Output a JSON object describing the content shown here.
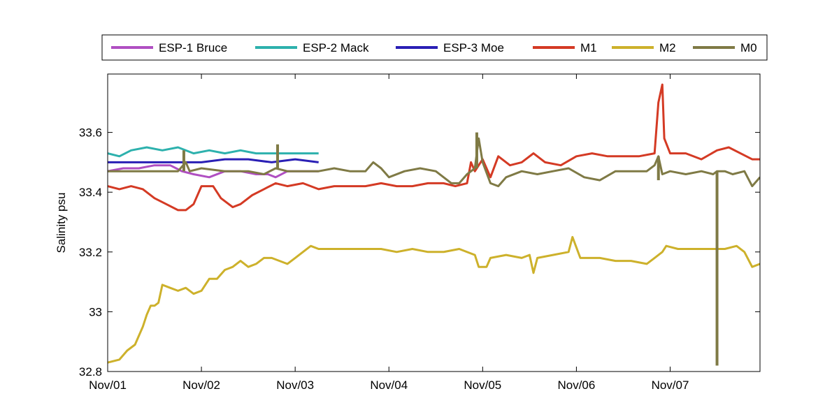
{
  "chart_data": {
    "type": "line",
    "ylabel": "Salinity psu",
    "xlabel": "",
    "xlim": [
      "2012-11-01",
      "2012-11-07 23:00"
    ],
    "ylim": [
      32.8,
      33.8
    ],
    "x_ticks": [
      {
        "date": "2012-11-01",
        "label": "Nov/01"
      },
      {
        "date": "2012-11-02",
        "label": "Nov/02"
      },
      {
        "date": "2012-11-03",
        "label": "Nov/03"
      },
      {
        "date": "2012-11-04",
        "label": "Nov/04"
      },
      {
        "date": "2012-11-05",
        "label": "Nov/05"
      },
      {
        "date": "2012-11-06",
        "label": "Nov/06"
      },
      {
        "date": "2012-11-07",
        "label": "Nov/07"
      }
    ],
    "y_ticks": [
      {
        "value": 32.8,
        "label": "32.8"
      },
      {
        "value": 33.0,
        "label": "33"
      },
      {
        "value": 33.2,
        "label": "33.2"
      },
      {
        "value": 33.4,
        "label": "33.4"
      },
      {
        "value": 33.6,
        "label": "33.6"
      }
    ],
    "grid": false,
    "legend_position": "top, outside, horizontal",
    "series": [
      {
        "name": "ESP-1 Bruce",
        "color": "#b04fc2",
        "points": [
          [
            "2012-11-01 00:00",
            33.47
          ],
          [
            "2012-11-01 04:00",
            33.48
          ],
          [
            "2012-11-01 08:00",
            33.48
          ],
          [
            "2012-11-01 12:00",
            33.49
          ],
          [
            "2012-11-01 16:00",
            33.49
          ],
          [
            "2012-11-01 19:00",
            33.47
          ],
          [
            "2012-11-01 22:00",
            33.46
          ],
          [
            "2012-11-02 02:00",
            33.45
          ],
          [
            "2012-11-02 06:00",
            33.47
          ],
          [
            "2012-11-02 10:00",
            33.47
          ],
          [
            "2012-11-02 14:00",
            33.46
          ],
          [
            "2012-11-02 17:00",
            33.46
          ],
          [
            "2012-11-02 19:00",
            33.45
          ],
          [
            "2012-11-02 22:00",
            33.47
          ],
          [
            "2012-11-03 02:00",
            33.47
          ],
          [
            "2012-11-03 06:00",
            33.47
          ]
        ]
      },
      {
        "name": "ESP-2 Mack",
        "color": "#2db1ad",
        "points": [
          [
            "2012-11-01 00:00",
            33.53
          ],
          [
            "2012-11-01 03:00",
            33.52
          ],
          [
            "2012-11-01 06:00",
            33.54
          ],
          [
            "2012-11-01 10:00",
            33.55
          ],
          [
            "2012-11-01 14:00",
            33.54
          ],
          [
            "2012-11-01 18:00",
            33.55
          ],
          [
            "2012-11-01 22:00",
            33.53
          ],
          [
            "2012-11-02 02:00",
            33.54
          ],
          [
            "2012-11-02 06:00",
            33.53
          ],
          [
            "2012-11-02 10:00",
            33.54
          ],
          [
            "2012-11-02 14:00",
            33.53
          ],
          [
            "2012-11-02 18:00",
            33.53
          ],
          [
            "2012-11-02 22:00",
            33.53
          ],
          [
            "2012-11-03 02:00",
            33.53
          ],
          [
            "2012-11-03 06:00",
            33.53
          ]
        ]
      },
      {
        "name": "ESP-3 Moe",
        "color": "#2a1fb5",
        "points": [
          [
            "2012-11-01 00:00",
            33.5
          ],
          [
            "2012-11-01 06:00",
            33.5
          ],
          [
            "2012-11-01 12:00",
            33.5
          ],
          [
            "2012-11-01 18:00",
            33.5
          ],
          [
            "2012-11-02 00:00",
            33.5
          ],
          [
            "2012-11-02 06:00",
            33.51
          ],
          [
            "2012-11-02 12:00",
            33.51
          ],
          [
            "2012-11-02 18:00",
            33.5
          ],
          [
            "2012-11-03 00:00",
            33.51
          ],
          [
            "2012-11-03 06:00",
            33.5
          ]
        ]
      },
      {
        "name": "M1",
        "color": "#d43a24",
        "points": [
          [
            "2012-11-01 00:00",
            33.42
          ],
          [
            "2012-11-01 03:00",
            33.41
          ],
          [
            "2012-11-01 06:00",
            33.42
          ],
          [
            "2012-11-01 09:00",
            33.41
          ],
          [
            "2012-11-01 12:00",
            33.38
          ],
          [
            "2012-11-01 15:00",
            33.36
          ],
          [
            "2012-11-01 18:00",
            33.34
          ],
          [
            "2012-11-01 20:00",
            33.34
          ],
          [
            "2012-11-01 22:00",
            33.36
          ],
          [
            "2012-11-02 00:00",
            33.42
          ],
          [
            "2012-11-02 03:00",
            33.42
          ],
          [
            "2012-11-02 05:00",
            33.38
          ],
          [
            "2012-11-02 08:00",
            33.35
          ],
          [
            "2012-11-02 10:00",
            33.36
          ],
          [
            "2012-11-02 13:00",
            33.39
          ],
          [
            "2012-11-02 16:00",
            33.41
          ],
          [
            "2012-11-02 19:00",
            33.43
          ],
          [
            "2012-11-02 22:00",
            33.42
          ],
          [
            "2012-11-03 02:00",
            33.43
          ],
          [
            "2012-11-03 06:00",
            33.41
          ],
          [
            "2012-11-03 10:00",
            33.42
          ],
          [
            "2012-11-03 14:00",
            33.42
          ],
          [
            "2012-11-03 18:00",
            33.42
          ],
          [
            "2012-11-03 22:00",
            33.43
          ],
          [
            "2012-11-04 02:00",
            33.42
          ],
          [
            "2012-11-04 06:00",
            33.42
          ],
          [
            "2012-11-04 10:00",
            33.43
          ],
          [
            "2012-11-04 14:00",
            33.43
          ],
          [
            "2012-11-04 17:00",
            33.42
          ],
          [
            "2012-11-04 20:00",
            33.43
          ],
          [
            "2012-11-04 21:00",
            33.5
          ],
          [
            "2012-11-04 22:00",
            33.47
          ],
          [
            "2012-11-05 00:00",
            33.51
          ],
          [
            "2012-11-05 02:00",
            33.45
          ],
          [
            "2012-11-05 04:00",
            33.52
          ],
          [
            "2012-11-05 07:00",
            33.49
          ],
          [
            "2012-11-05 10:00",
            33.5
          ],
          [
            "2012-11-05 13:00",
            33.53
          ],
          [
            "2012-11-05 16:00",
            33.5
          ],
          [
            "2012-11-05 20:00",
            33.49
          ],
          [
            "2012-11-06 00:00",
            33.52
          ],
          [
            "2012-11-06 04:00",
            33.53
          ],
          [
            "2012-11-06 08:00",
            33.52
          ],
          [
            "2012-11-06 12:00",
            33.52
          ],
          [
            "2012-11-06 16:00",
            33.52
          ],
          [
            "2012-11-06 20:00",
            33.53
          ],
          [
            "2012-11-06 21:00",
            33.7
          ],
          [
            "2012-11-06 22:00",
            33.76
          ],
          [
            "2012-11-06 22:30",
            33.58
          ],
          [
            "2012-11-07 00:00",
            33.53
          ],
          [
            "2012-11-07 04:00",
            33.53
          ],
          [
            "2012-11-07 08:00",
            33.51
          ],
          [
            "2012-11-07 12:00",
            33.54
          ],
          [
            "2012-11-07 15:00",
            33.55
          ],
          [
            "2012-11-07 18:00",
            33.53
          ],
          [
            "2012-11-07 21:00",
            33.51
          ],
          [
            "2012-11-07 23:00",
            33.51
          ]
        ]
      },
      {
        "name": "M2",
        "color": "#cdb12b",
        "points": [
          [
            "2012-11-01 00:00",
            32.83
          ],
          [
            "2012-11-01 03:00",
            32.84
          ],
          [
            "2012-11-01 05:00",
            32.87
          ],
          [
            "2012-11-01 07:00",
            32.89
          ],
          [
            "2012-11-01 08:00",
            32.92
          ],
          [
            "2012-11-01 09:00",
            32.95
          ],
          [
            "2012-11-01 10:00",
            32.99
          ],
          [
            "2012-11-01 11:00",
            33.02
          ],
          [
            "2012-11-01 12:00",
            33.02
          ],
          [
            "2012-11-01 13:00",
            33.03
          ],
          [
            "2012-11-01 14:00",
            33.09
          ],
          [
            "2012-11-01 16:00",
            33.08
          ],
          [
            "2012-11-01 18:00",
            33.07
          ],
          [
            "2012-11-01 20:00",
            33.08
          ],
          [
            "2012-11-01 22:00",
            33.06
          ],
          [
            "2012-11-02 00:00",
            33.07
          ],
          [
            "2012-11-02 02:00",
            33.11
          ],
          [
            "2012-11-02 04:00",
            33.11
          ],
          [
            "2012-11-02 06:00",
            33.14
          ],
          [
            "2012-11-02 08:00",
            33.15
          ],
          [
            "2012-11-02 10:00",
            33.17
          ],
          [
            "2012-11-02 12:00",
            33.15
          ],
          [
            "2012-11-02 14:00",
            33.16
          ],
          [
            "2012-11-02 16:00",
            33.18
          ],
          [
            "2012-11-02 18:00",
            33.18
          ],
          [
            "2012-11-02 20:00",
            33.17
          ],
          [
            "2012-11-02 22:00",
            33.16
          ],
          [
            "2012-11-03 00:00",
            33.18
          ],
          [
            "2012-11-03 02:00",
            33.2
          ],
          [
            "2012-11-03 04:00",
            33.22
          ],
          [
            "2012-11-03 06:00",
            33.21
          ],
          [
            "2012-11-03 10:00",
            33.21
          ],
          [
            "2012-11-03 14:00",
            33.21
          ],
          [
            "2012-11-03 18:00",
            33.21
          ],
          [
            "2012-11-03 22:00",
            33.21
          ],
          [
            "2012-11-04 02:00",
            33.2
          ],
          [
            "2012-11-04 06:00",
            33.21
          ],
          [
            "2012-11-04 10:00",
            33.2
          ],
          [
            "2012-11-04 14:00",
            33.2
          ],
          [
            "2012-11-04 18:00",
            33.21
          ],
          [
            "2012-11-04 22:00",
            33.19
          ],
          [
            "2012-11-04 23:00",
            33.15
          ],
          [
            "2012-11-05 01:00",
            33.15
          ],
          [
            "2012-11-05 02:00",
            33.18
          ],
          [
            "2012-11-05 06:00",
            33.19
          ],
          [
            "2012-11-05 10:00",
            33.18
          ],
          [
            "2012-11-05 12:00",
            33.19
          ],
          [
            "2012-11-05 13:00",
            33.13
          ],
          [
            "2012-11-05 14:00",
            33.18
          ],
          [
            "2012-11-05 18:00",
            33.19
          ],
          [
            "2012-11-05 22:00",
            33.2
          ],
          [
            "2012-11-05 23:00",
            33.25
          ],
          [
            "2012-11-06 01:00",
            33.18
          ],
          [
            "2012-11-06 06:00",
            33.18
          ],
          [
            "2012-11-06 10:00",
            33.17
          ],
          [
            "2012-11-06 14:00",
            33.17
          ],
          [
            "2012-11-06 18:00",
            33.16
          ],
          [
            "2012-11-06 20:00",
            33.18
          ],
          [
            "2012-11-06 22:00",
            33.2
          ],
          [
            "2012-11-06 23:00",
            33.22
          ],
          [
            "2012-11-07 02:00",
            33.21
          ],
          [
            "2012-11-07 06:00",
            33.21
          ],
          [
            "2012-11-07 10:00",
            33.21
          ],
          [
            "2012-11-07 14:00",
            33.21
          ],
          [
            "2012-11-07 17:00",
            33.22
          ],
          [
            "2012-11-07 19:00",
            33.2
          ],
          [
            "2012-11-07 21:00",
            33.15
          ],
          [
            "2012-11-07 23:00",
            33.16
          ]
        ]
      },
      {
        "name": "M0",
        "color": "#7f7a45",
        "points": [
          [
            "2012-11-01 00:00",
            33.47
          ],
          [
            "2012-11-01 06:00",
            33.47
          ],
          [
            "2012-11-01 12:00",
            33.47
          ],
          [
            "2012-11-01 18:00",
            33.47
          ],
          [
            "2012-11-01 20:00",
            33.5
          ],
          [
            "2012-11-01 21:00",
            33.47
          ],
          [
            "2012-11-02 00:00",
            33.48
          ],
          [
            "2012-11-02 06:00",
            33.47
          ],
          [
            "2012-11-02 12:00",
            33.47
          ],
          [
            "2012-11-02 16:00",
            33.46
          ],
          [
            "2012-11-02 19:00",
            33.48
          ],
          [
            "2012-11-02 22:00",
            33.47
          ],
          [
            "2012-11-03 02:00",
            33.47
          ],
          [
            "2012-11-03 06:00",
            33.47
          ],
          [
            "2012-11-03 10:00",
            33.48
          ],
          [
            "2012-11-03 14:00",
            33.47
          ],
          [
            "2012-11-03 18:00",
            33.47
          ],
          [
            "2012-11-03 20:00",
            33.5
          ],
          [
            "2012-11-03 22:00",
            33.48
          ],
          [
            "2012-11-04 00:00",
            33.45
          ],
          [
            "2012-11-04 04:00",
            33.47
          ],
          [
            "2012-11-04 08:00",
            33.48
          ],
          [
            "2012-11-04 12:00",
            33.47
          ],
          [
            "2012-11-04 16:00",
            33.43
          ],
          [
            "2012-11-04 18:00",
            33.43
          ],
          [
            "2012-11-04 20:00",
            33.46
          ],
          [
            "2012-11-04 22:00",
            33.48
          ],
          [
            "2012-11-04 23:00",
            33.58
          ],
          [
            "2012-11-05 00:00",
            33.5
          ],
          [
            "2012-11-05 02:00",
            33.43
          ],
          [
            "2012-11-05 04:00",
            33.42
          ],
          [
            "2012-11-05 06:00",
            33.45
          ],
          [
            "2012-11-05 10:00",
            33.47
          ],
          [
            "2012-11-05 14:00",
            33.46
          ],
          [
            "2012-11-05 18:00",
            33.47
          ],
          [
            "2012-11-05 22:00",
            33.48
          ],
          [
            "2012-11-06 02:00",
            33.45
          ],
          [
            "2012-11-06 06:00",
            33.44
          ],
          [
            "2012-11-06 10:00",
            33.47
          ],
          [
            "2012-11-06 14:00",
            33.47
          ],
          [
            "2012-11-06 18:00",
            33.47
          ],
          [
            "2012-11-06 20:00",
            33.49
          ],
          [
            "2012-11-06 21:00",
            33.52
          ],
          [
            "2012-11-06 22:00",
            33.46
          ],
          [
            "2012-11-07 00:00",
            33.47
          ],
          [
            "2012-11-07 04:00",
            33.46
          ],
          [
            "2012-11-07 08:00",
            33.47
          ],
          [
            "2012-11-07 11:00",
            33.46
          ],
          [
            "2012-11-07 12:00",
            33.47
          ],
          [
            "2012-11-07 14:00",
            33.47
          ],
          [
            "2012-11-07 16:00",
            33.46
          ],
          [
            "2012-11-07 19:00",
            33.47
          ],
          [
            "2012-11-07 21:00",
            33.42
          ],
          [
            "2012-11-07 23:00",
            33.45
          ]
        ],
        "spikes": [
          {
            "x": "2012-11-01 19:30",
            "y": 33.54
          },
          {
            "x": "2012-11-02 19:30",
            "y": 33.56
          },
          {
            "x": "2012-11-04 22:30",
            "y": 33.6
          },
          {
            "x": "2012-11-06 21:00",
            "y": 33.44
          },
          {
            "x": "2012-11-07 12:00",
            "y": 32.82
          }
        ]
      }
    ]
  }
}
